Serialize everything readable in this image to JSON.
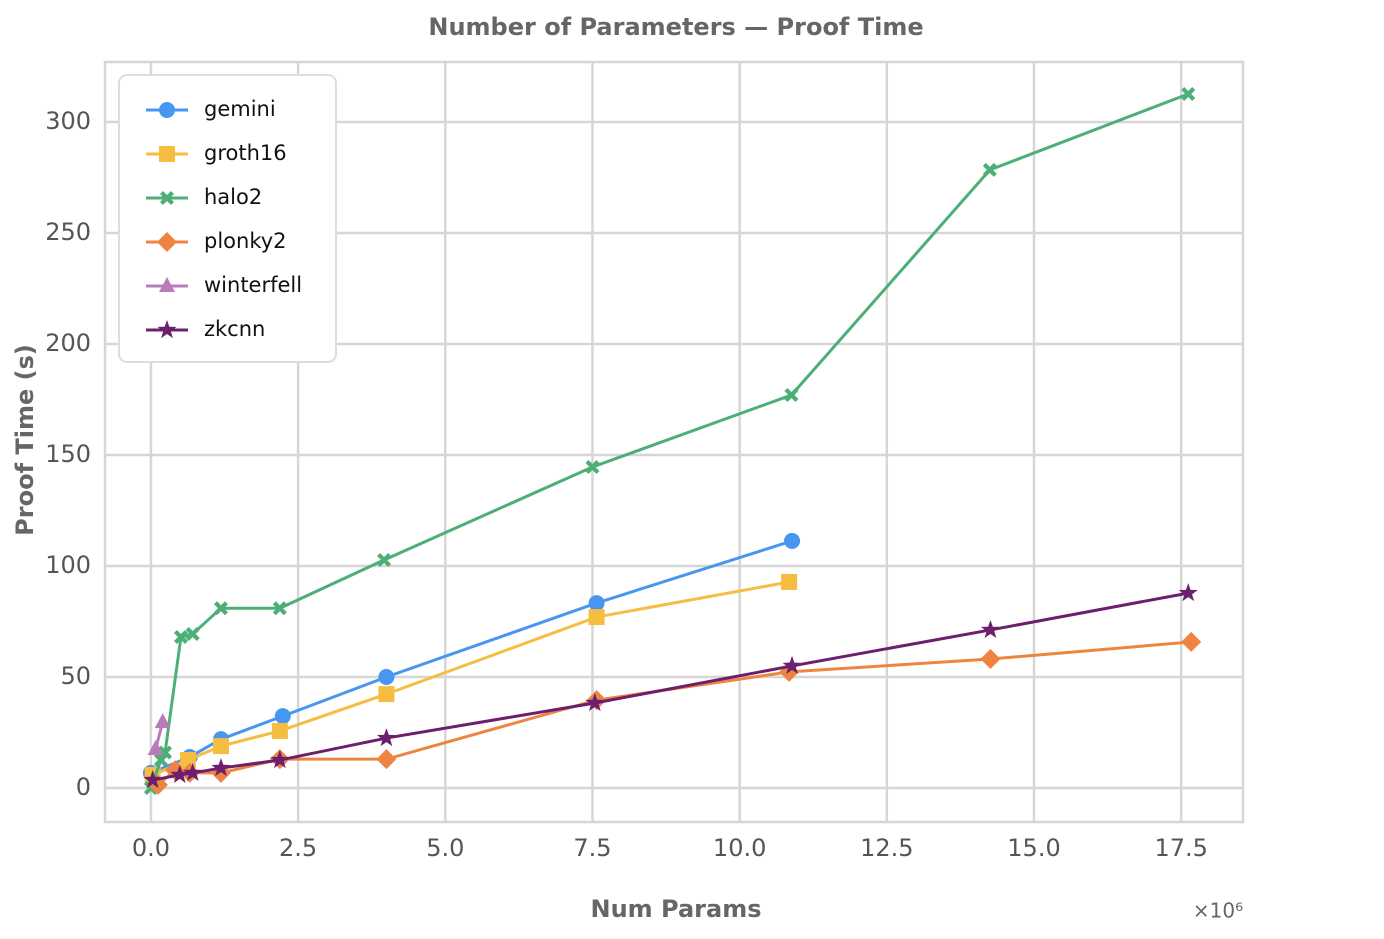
{
  "chart_data": {
    "type": "line",
    "title": "Number of Parameters — Proof Time",
    "x_label": "Num Params",
    "y_label": "Proof Time (s)",
    "x_multiplier": "×10⁶",
    "xlim": [
      -0.78,
      18.55
    ],
    "ylim": [
      -15.3,
      327
    ],
    "xticks": [
      {
        "value": 0,
        "label": "0.0"
      },
      2.5,
      {
        "value": 5,
        "label": "5.0"
      },
      7.5,
      {
        "value": 10,
        "label": "10.0"
      },
      12.5,
      {
        "value": 15,
        "label": "15.0"
      },
      17.5
    ],
    "yticks": [
      0,
      50,
      100,
      150,
      200,
      250,
      300
    ],
    "grid": true,
    "legend": "upper left",
    "series": [
      {
        "name": "gemini",
        "color": "#4796f0",
        "marker": "circle",
        "x": [
          0,
          0.66,
          1.19,
          2.24,
          4.0,
          7.57,
          10.89
        ],
        "values": [
          6.8,
          14,
          22,
          32.4,
          50,
          83.3,
          111.3
        ]
      },
      {
        "name": "groth16",
        "color": "#f5bd42",
        "marker": "square",
        "x": [
          0.03,
          0.63,
          1.19,
          2.19,
          4.0,
          7.57,
          10.84
        ],
        "values": [
          5.9,
          12.6,
          18.9,
          25.7,
          42.3,
          77,
          92.8
        ]
      },
      {
        "name": "halo2",
        "color": "#4caf78",
        "marker": "x",
        "x": [
          0,
          0.17,
          0.24,
          0.51,
          0.71,
          1.19,
          2.19,
          3.96,
          7.5,
          10.88,
          14.25,
          17.62
        ],
        "values": [
          0,
          12.6,
          16,
          68,
          69.4,
          81,
          81,
          102.7,
          144.6,
          177,
          278.4,
          312.6
        ]
      },
      {
        "name": "plonky2",
        "color": "#ee8440",
        "marker": "diamond",
        "x": [
          0.12,
          0.41,
          0.66,
          1.19,
          2.19,
          4.0,
          7.57,
          10.84,
          14.26,
          17.67
        ],
        "values": [
          1.4,
          8,
          6.8,
          6.8,
          13,
          13,
          39.6,
          52.3,
          58.1,
          65.8
        ]
      },
      {
        "name": "winterfell",
        "color": "#b87cbb",
        "marker": "triangle",
        "x": [
          0.08,
          0.2
        ],
        "values": [
          17.6,
          29.7
        ]
      },
      {
        "name": "zkcnn",
        "color": "#6b1f6e",
        "marker": "star",
        "x": [
          0.03,
          0.49,
          0.71,
          1.19,
          2.19,
          4.0,
          7.54,
          10.89,
          14.26,
          17.62
        ],
        "values": [
          3.6,
          5.9,
          6.8,
          9,
          12.6,
          22.5,
          38.3,
          55,
          71.2,
          87.8
        ]
      }
    ]
  }
}
